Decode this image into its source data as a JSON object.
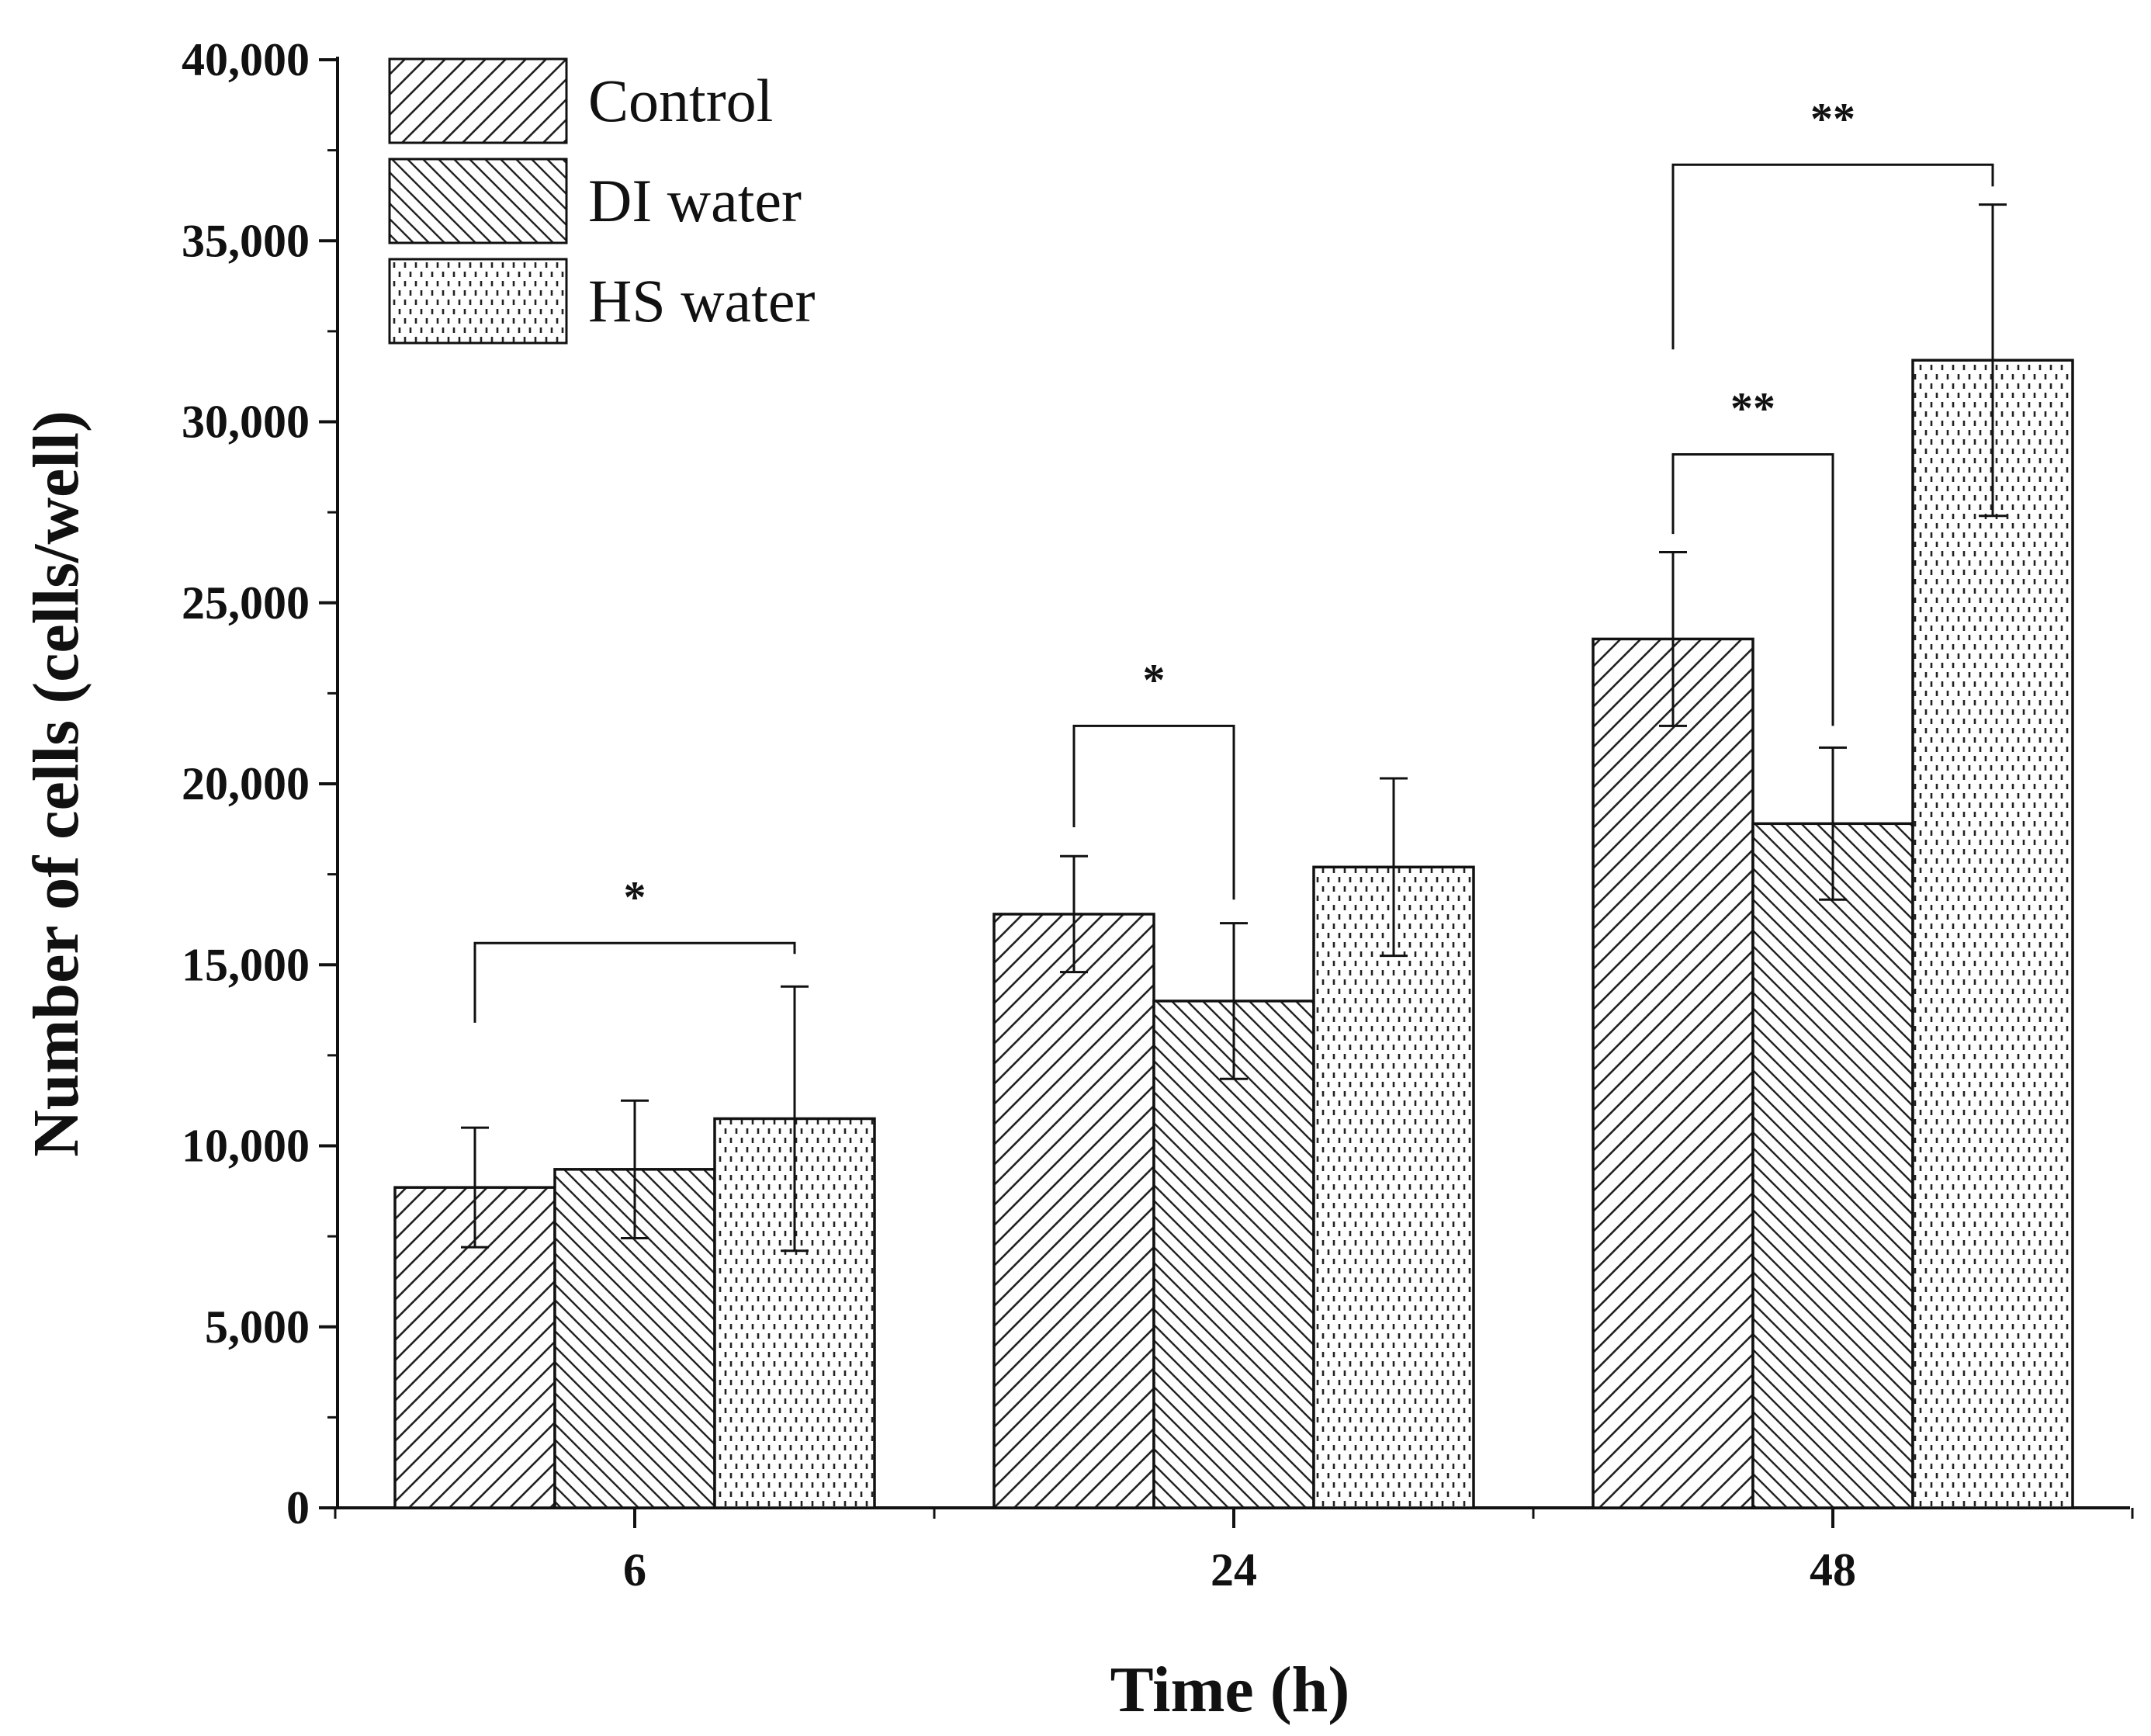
{
  "chart_data": {
    "type": "bar",
    "title": "",
    "xlabel": "Time (h)",
    "ylabel": "Number of cells (cells/well)",
    "ylim": [
      0,
      40000
    ],
    "yticks": [
      0,
      5000,
      10000,
      15000,
      20000,
      25000,
      30000,
      35000,
      40000
    ],
    "ytick_labels": [
      "0",
      "5,000",
      "10,000",
      "15,000",
      "20,000",
      "25,000",
      "30,000",
      "35,000",
      "40,000"
    ],
    "categories": [
      "6",
      "24",
      "48"
    ],
    "series": [
      {
        "name": "Control",
        "pattern": "diag-right",
        "values": [
          8850,
          16400,
          24000
        ],
        "errors": [
          1650,
          1600,
          2400
        ]
      },
      {
        "name": "DI water",
        "pattern": "diag-left",
        "values": [
          9350,
          14000,
          18900
        ],
        "errors": [
          1900,
          2150,
          2100
        ]
      },
      {
        "name": "HS water",
        "pattern": "dots",
        "values": [
          10750,
          17700,
          31700
        ],
        "errors": [
          3650,
          2450,
          4300
        ]
      }
    ],
    "legend": {
      "position": "top-left",
      "entries": [
        "Control",
        "DI water",
        "HS water"
      ]
    },
    "significance": [
      {
        "category": "6",
        "from_series": 0,
        "to_series": 2,
        "label": "*",
        "bracket_y": 15600,
        "left_start": 13400,
        "right_start": 15300
      },
      {
        "category": "24",
        "from_series": 0,
        "to_series": 1,
        "label": "*",
        "bracket_y": 21600,
        "left_start": 18800,
        "right_start": 16800
      },
      {
        "category": "48",
        "from_series": 0,
        "to_series": 1,
        "label": "**",
        "bracket_y": 29100,
        "left_start": 26900,
        "right_start": 21600
      },
      {
        "category": "48",
        "from_series": 0,
        "to_series": 2,
        "label": "**",
        "bracket_y": 37100,
        "left_start": 32000,
        "right_start": 36500
      }
    ],
    "colors": {
      "ink": "#111111",
      "fill": "#ffffff"
    }
  }
}
